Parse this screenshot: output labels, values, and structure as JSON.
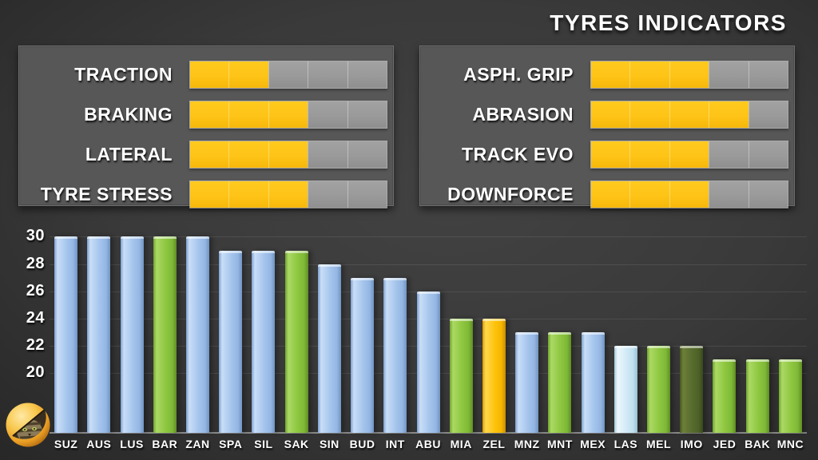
{
  "title": "TYRES INDICATORS",
  "indicators": {
    "left": [
      {
        "label": "TRACTION",
        "value": 2,
        "max": 5
      },
      {
        "label": "BRAKING",
        "value": 3,
        "max": 5
      },
      {
        "label": "LATERAL",
        "value": 3,
        "max": 5
      },
      {
        "label": "TYRE STRESS",
        "value": 3,
        "max": 5
      }
    ],
    "right": [
      {
        "label": "ASPH. GRIP",
        "value": 3,
        "max": 5
      },
      {
        "label": "ABRASION",
        "value": 4,
        "max": 5
      },
      {
        "label": "TRACK EVO",
        "value": 3,
        "max": 5
      },
      {
        "label": "DOWNFORCE",
        "value": 3,
        "max": 5
      }
    ]
  },
  "chart_data": {
    "type": "bar",
    "title": "",
    "xlabel": "",
    "ylabel": "",
    "categories": [
      "SUZ",
      "AUS",
      "LUS",
      "BAR",
      "ZAN",
      "SPA",
      "SIL",
      "SAK",
      "SIN",
      "BUD",
      "INT",
      "ABU",
      "MIA",
      "ZEL",
      "MNZ",
      "MNT",
      "MEX",
      "LAS",
      "MEL",
      "IMO",
      "JED",
      "BAK",
      "MNC"
    ],
    "values": [
      30,
      30,
      30,
      30,
      30,
      29,
      29,
      29,
      28,
      27,
      27,
      26,
      24,
      24,
      23,
      23,
      23,
      22,
      22,
      22,
      21,
      21,
      21
    ],
    "bar_colors": [
      "blue",
      "blue",
      "blue",
      "green",
      "blue",
      "blue",
      "blue",
      "green",
      "blue",
      "blue",
      "blue",
      "blue",
      "green",
      "yellow",
      "blue",
      "green",
      "blue",
      "pale",
      "green",
      "olive",
      "green",
      "green",
      "green"
    ],
    "palette": {
      "blue": "#a4c4ec",
      "green": "#8dc63f",
      "yellow": "#fdc20a",
      "pale": "#cfe9f6",
      "olive": "#566b2d"
    },
    "yticks": [
      30,
      28,
      26,
      24,
      22,
      20
    ],
    "ylim": [
      15.6,
      31.2
    ],
    "grid": true,
    "legend": "none"
  },
  "colors": {
    "segment_filled": "#fec417",
    "segment_empty": "#9a9a9a",
    "panel_background": "#575757",
    "page_background": "#3a3a3a",
    "text": "#ffffff"
  },
  "icons": {
    "avatar": "cat-avatar"
  }
}
